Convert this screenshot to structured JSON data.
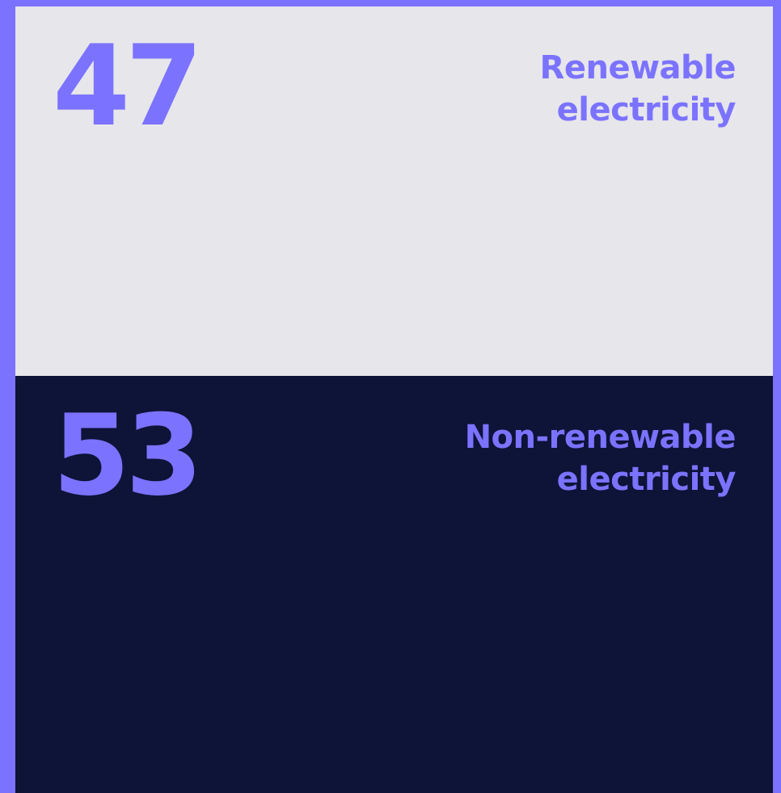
{
  "chart_data": {
    "type": "stacked-block",
    "categories": [
      "Renewable electricity",
      "Non-renewable electricity"
    ],
    "values": [
      47,
      53
    ],
    "colors": [
      "#e7e6ea",
      "#0e1338"
    ],
    "text_color": "#7b73ff",
    "frame_color": "#7b73ff"
  }
}
